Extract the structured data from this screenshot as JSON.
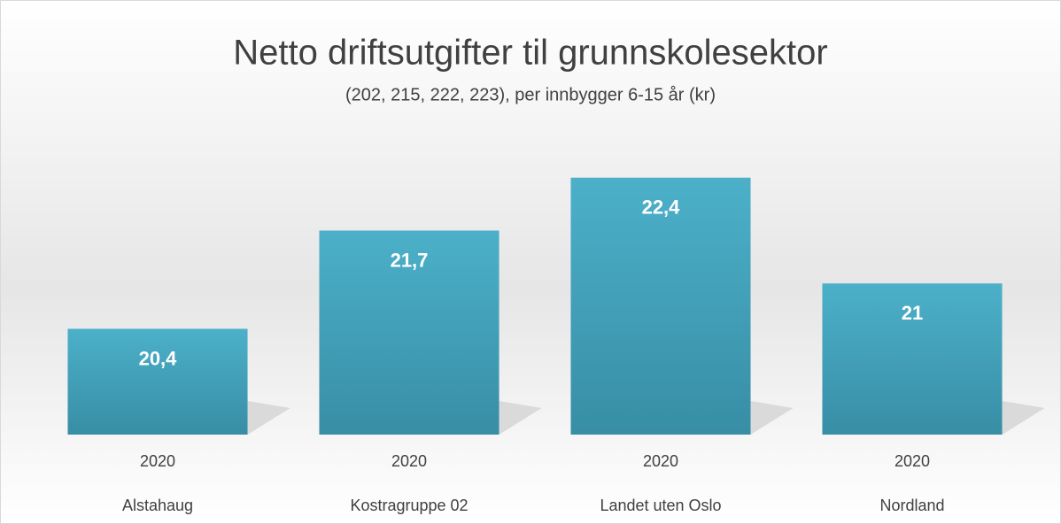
{
  "chart_data": {
    "type": "bar",
    "title": "Netto driftsutgifter til grunnskolesektor",
    "subtitle": "(202, 215, 222, 223), per innbygger 6-15 år (kr)",
    "categories": [
      "Alstahaug",
      "Kostragruppe 02",
      "Landet uten Oslo",
      "Nordland"
    ],
    "periods": [
      "2020",
      "2020",
      "2020",
      "2020"
    ],
    "values": [
      20.4,
      21.7,
      22.4,
      21
    ],
    "value_labels": [
      "20,4",
      "21,7",
      "22,4",
      "21"
    ],
    "color": "#45a8c0",
    "ylim": [
      19,
      23
    ]
  }
}
